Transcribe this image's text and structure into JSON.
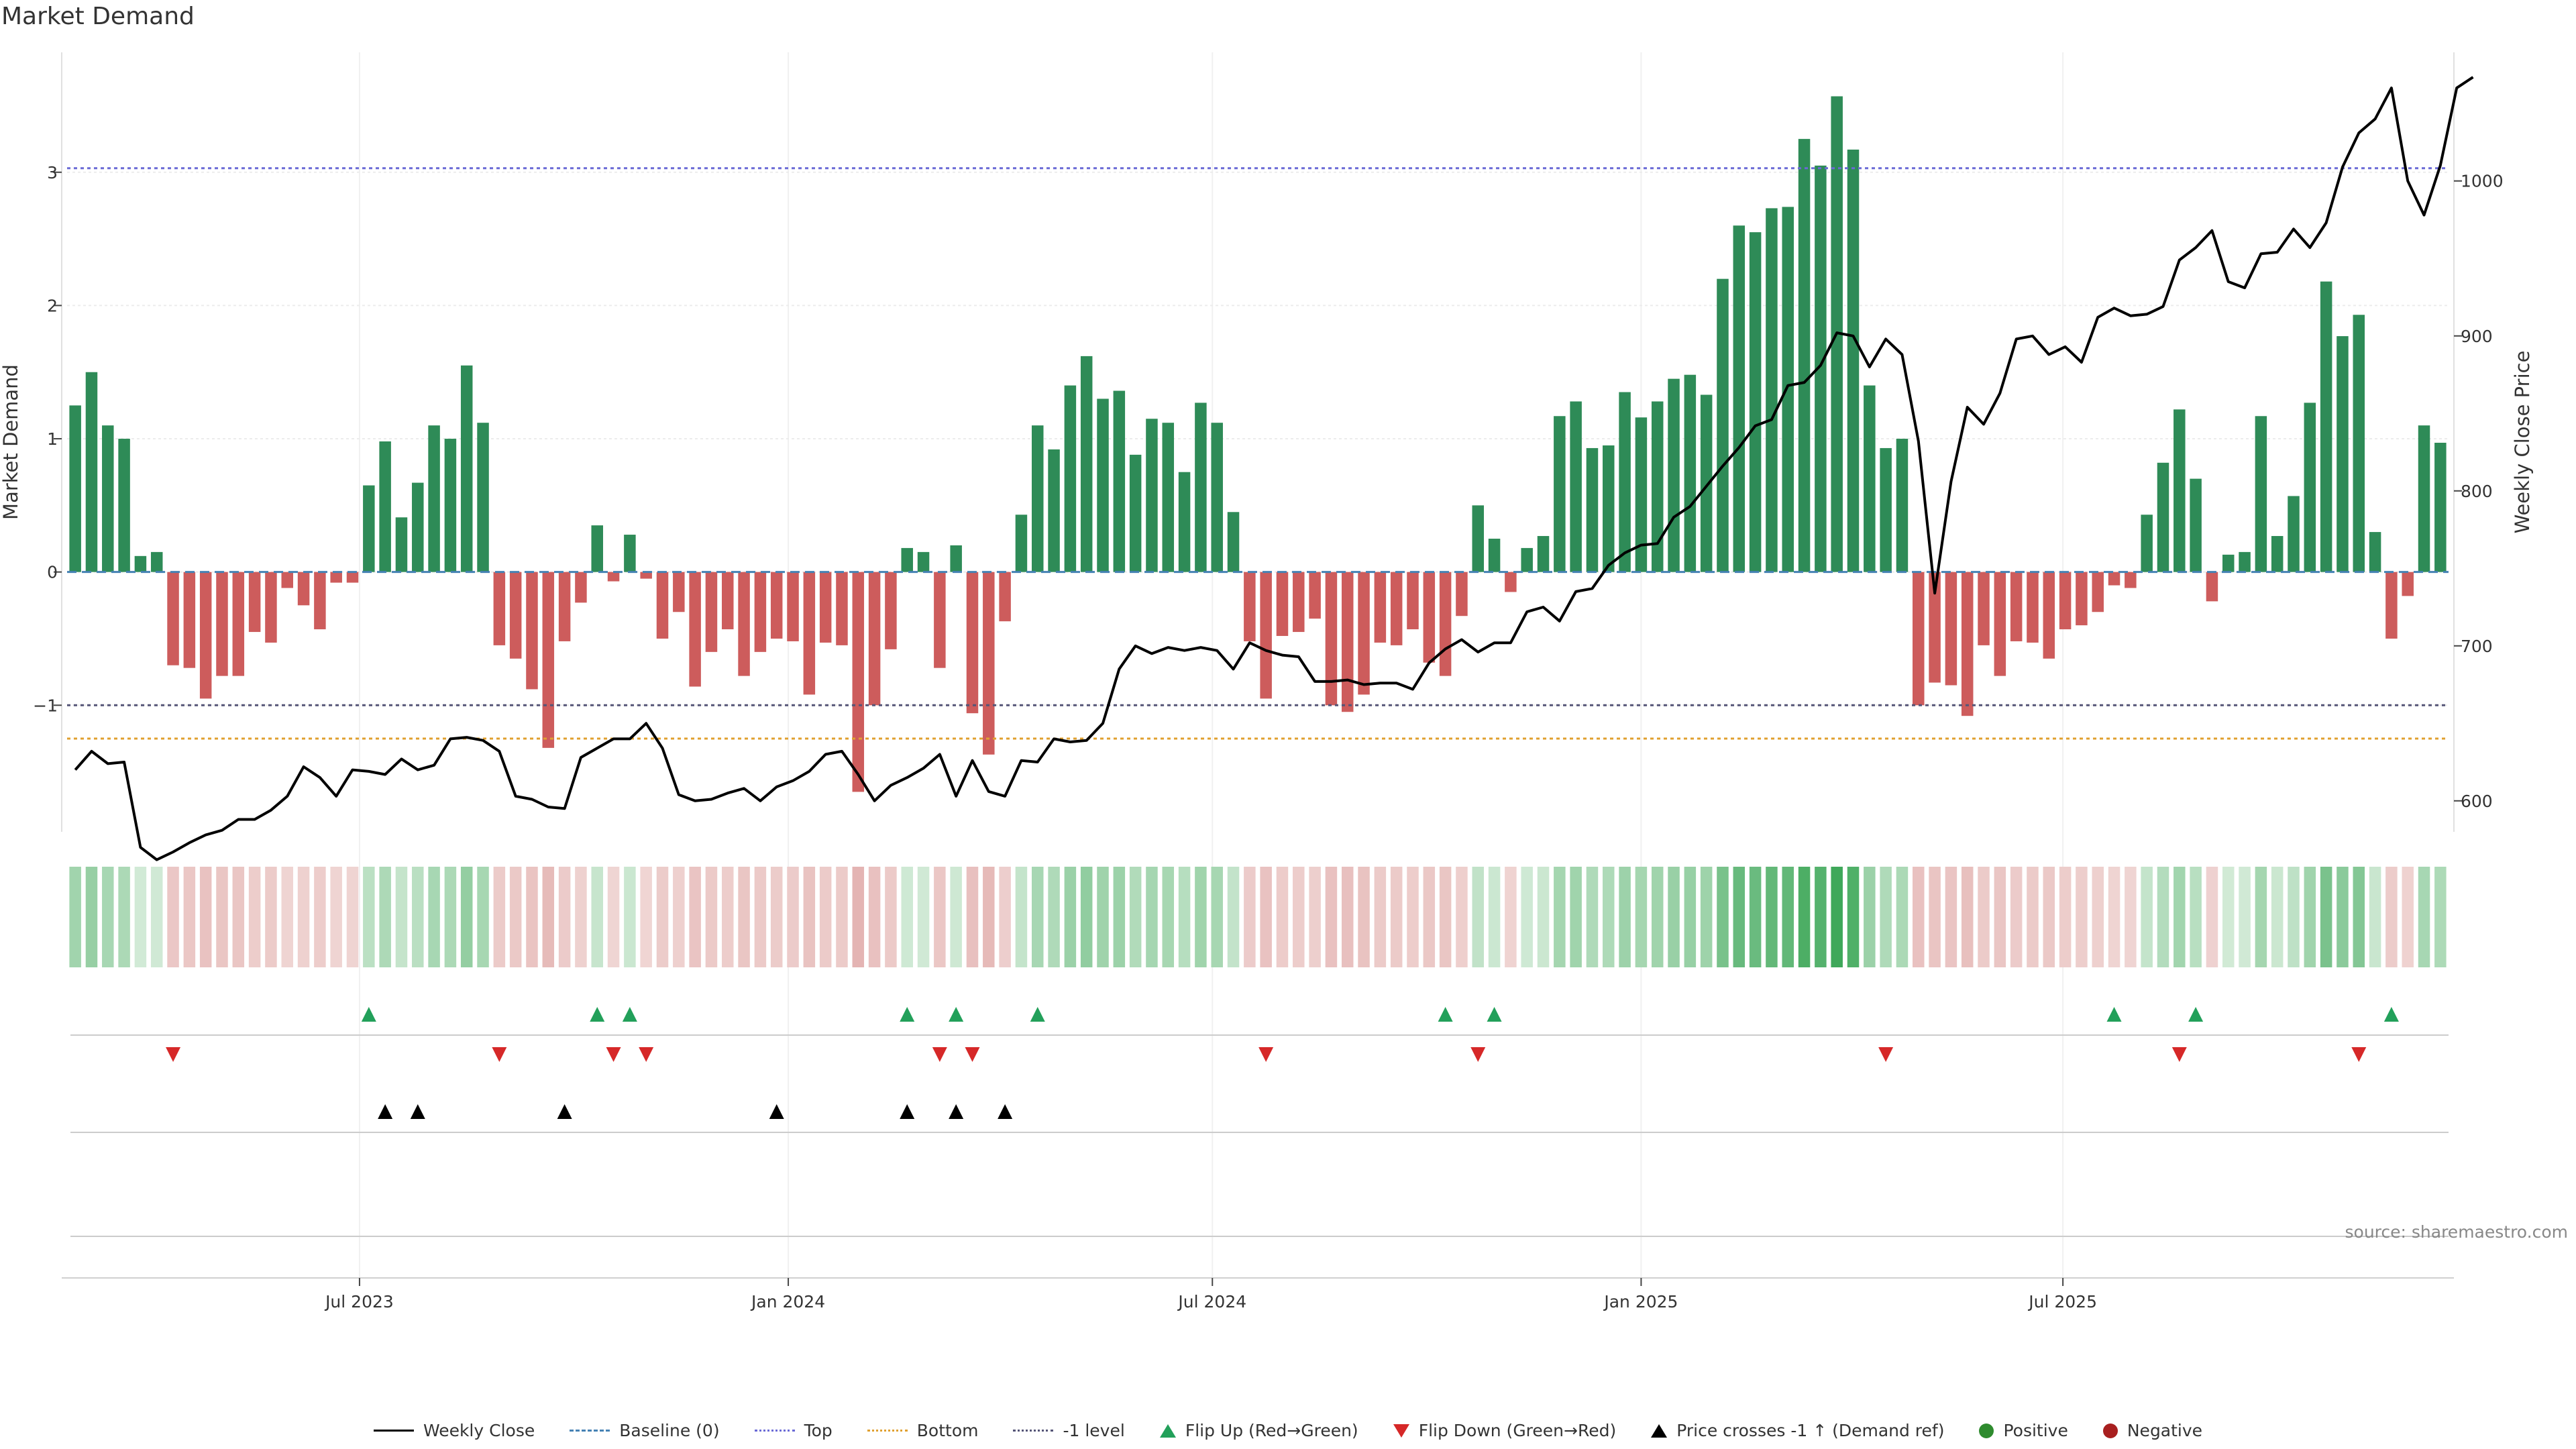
{
  "title": "Market Demand",
  "source": "source: sharemaestro.com",
  "colors": {
    "positive": "#2e8b57",
    "negative": "#cd5c5c",
    "price": "#000000",
    "baseline": "#4682b4",
    "top": "#6a6ad6",
    "bottom": "#e0a030",
    "minus_one": "#555577",
    "flip_up": "#22a05a",
    "flip_down": "#d62828",
    "cross": "#000000",
    "dot_positive": "#2e8b2e",
    "dot_negative": "#a81f1f"
  },
  "legend": [
    {
      "label": "Weekly Close",
      "kind": "solid",
      "color": "#000000",
      "icon": "line-icon"
    },
    {
      "label": "Baseline (0)",
      "kind": "dashed",
      "color": "#4682b4",
      "icon": "dashed-line-icon"
    },
    {
      "label": "Top",
      "kind": "dotted",
      "color": "#6a6ad6",
      "icon": "dotted-line-icon"
    },
    {
      "label": "Bottom",
      "kind": "dotted",
      "color": "#e0a030",
      "icon": "dotted-line-icon"
    },
    {
      "label": "-1 level",
      "kind": "dotted",
      "color": "#555577",
      "icon": "dotted-line-icon"
    },
    {
      "label": "Flip Up (Red→Green)",
      "kind": "tri-up",
      "color": "#22a05a",
      "icon": "triangle-up-icon"
    },
    {
      "label": "Flip Down (Green→Red)",
      "kind": "tri-down",
      "color": "#d62828",
      "icon": "triangle-down-icon"
    },
    {
      "label": "Price crosses -1 ↑ (Demand ref)",
      "kind": "tri-up",
      "color": "#000000",
      "icon": "triangle-up-icon"
    },
    {
      "label": "Positive",
      "kind": "dot",
      "color": "#2e8b2e",
      "icon": "dot-icon"
    },
    {
      "label": "Negative",
      "kind": "dot",
      "color": "#a81f1f",
      "icon": "dot-icon"
    }
  ],
  "chart_data": {
    "type": "bar",
    "title": "Market Demand",
    "ylabel": "Market Demand",
    "y2label": "Weekly Close Price",
    "ylim": [
      -1.95,
      3.9
    ],
    "y2lim": [
      580,
      1083
    ],
    "yticks": [
      -1,
      0,
      1,
      2,
      3
    ],
    "y2ticks": [
      600,
      700,
      800,
      900,
      1000
    ],
    "levels": {
      "top": 3.03,
      "baseline": 0,
      "minus_one": -1.0,
      "bottom": -1.25
    },
    "x_start": "2023-03-01",
    "x_step_days": 7,
    "x_ticks": [
      {
        "label": "Jul 2023",
        "date": "2023-07-01"
      },
      {
        "label": "Jan 2024",
        "date": "2024-01-01"
      },
      {
        "label": "Jul 2024",
        "date": "2024-07-01"
      },
      {
        "label": "Jan 2025",
        "date": "2025-01-01"
      },
      {
        "label": "Jul 2025",
        "date": "2025-07-01"
      }
    ],
    "demand": [
      1.25,
      1.5,
      1.1,
      1.0,
      0.12,
      0.15,
      -0.7,
      -0.72,
      -0.95,
      -0.78,
      -0.78,
      -0.45,
      -0.53,
      -0.12,
      -0.25,
      -0.43,
      -0.08,
      -0.08,
      0.65,
      0.98,
      0.41,
      0.67,
      1.1,
      1.0,
      1.55,
      1.12,
      -0.55,
      -0.65,
      -0.88,
      -1.32,
      -0.52,
      -0.23,
      0.35,
      -0.07,
      0.28,
      -0.05,
      -0.5,
      -0.3,
      -0.86,
      -0.6,
      -0.43,
      -0.78,
      -0.6,
      -0.5,
      -0.52,
      -0.92,
      -0.53,
      -0.55,
      -1.65,
      -1.0,
      -0.58,
      0.18,
      0.15,
      -0.72,
      0.2,
      -1.06,
      -1.37,
      -0.37,
      0.43,
      1.1,
      0.92,
      1.4,
      1.62,
      1.3,
      1.36,
      0.88,
      1.15,
      1.12,
      0.75,
      1.27,
      1.12,
      0.45,
      -0.52,
      -0.95,
      -0.48,
      -0.45,
      -0.35,
      -1.0,
      -1.05,
      -0.92,
      -0.53,
      -0.55,
      -0.43,
      -0.68,
      -0.78,
      -0.33,
      0.5,
      0.25,
      -0.15,
      0.18,
      0.27,
      1.17,
      1.28,
      0.93,
      0.95,
      1.35,
      1.16,
      1.28,
      1.45,
      1.48,
      1.33,
      2.2,
      2.6,
      2.55,
      2.73,
      2.74,
      3.25,
      3.05,
      3.57,
      3.17,
      1.4,
      0.93,
      1.0,
      -1.0,
      -0.83,
      -0.85,
      -1.08,
      -0.55,
      -0.78,
      -0.52,
      -0.53,
      -0.65,
      -0.43,
      -0.4,
      -0.3,
      -0.1,
      -0.12,
      0.43,
      0.82,
      1.22,
      0.7,
      -0.22,
      0.13,
      0.15,
      1.17,
      0.27,
      0.57,
      1.27,
      2.18,
      1.77,
      1.93,
      0.3,
      -0.5,
      -0.18,
      1.1,
      0.97
    ],
    "price": [
      620,
      632,
      624,
      625,
      570,
      562,
      567,
      573,
      578,
      581,
      588,
      588,
      594,
      603,
      622,
      615,
      603,
      620,
      619,
      617,
      627,
      620,
      623,
      640,
      641,
      639,
      632,
      603,
      601,
      596,
      595,
      628,
      634,
      640,
      640,
      650,
      634,
      604,
      600,
      601,
      605,
      608,
      600,
      609,
      613,
      619,
      630,
      632,
      617,
      600,
      610,
      615,
      621,
      630,
      603,
      626,
      606,
      603,
      626,
      625,
      640,
      638,
      639,
      650,
      685,
      700,
      695,
      699,
      697,
      699,
      697,
      685,
      702,
      697,
      694,
      693,
      677,
      677,
      678,
      675,
      676,
      676,
      672,
      689,
      698,
      704,
      696,
      702,
      702,
      722,
      725,
      716,
      735,
      737,
      752,
      760,
      765,
      766,
      783,
      790,
      803,
      816,
      828,
      842,
      846,
      868,
      870,
      881,
      902,
      900,
      880,
      898,
      888,
      832,
      734,
      806,
      854,
      843,
      863,
      898,
      900,
      888,
      893,
      883,
      912,
      918,
      913,
      914,
      919,
      949,
      957,
      968,
      935,
      931,
      953,
      954,
      969,
      957,
      973,
      1009,
      1031,
      1040,
      1060,
      1000,
      978,
      1010,
      1060,
      1067
    ],
    "flip_up": [
      18,
      32,
      34,
      51,
      54,
      59,
      84,
      87,
      125,
      130,
      142
    ],
    "flip_down": [
      6,
      26,
      33,
      35,
      53,
      55,
      73,
      86,
      111,
      129,
      140
    ],
    "price_cross": [
      19,
      21,
      30,
      43,
      51,
      54,
      57
    ]
  }
}
